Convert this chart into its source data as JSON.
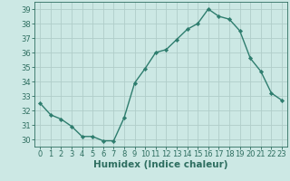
{
  "x": [
    0,
    1,
    2,
    3,
    4,
    5,
    6,
    7,
    8,
    9,
    10,
    11,
    12,
    13,
    14,
    15,
    16,
    17,
    18,
    19,
    20,
    21,
    22,
    23
  ],
  "y": [
    32.5,
    31.7,
    31.4,
    30.9,
    30.2,
    30.2,
    29.9,
    29.9,
    31.5,
    33.9,
    34.9,
    36.0,
    36.2,
    36.9,
    37.6,
    38.0,
    39.0,
    38.5,
    38.3,
    37.5,
    35.6,
    34.7,
    33.2,
    32.7
  ],
  "line_color": "#2e7d6e",
  "marker": "D",
  "marker_size": 2.2,
  "line_width": 1.0,
  "bg_color": "#cce8e4",
  "plot_bg_color": "#cce8e4",
  "grid_color": "#b0cdc9",
  "xlabel": "Humidex (Indice chaleur)",
  "ylabel": "",
  "ylim": [
    29.5,
    39.5
  ],
  "yticks": [
    30,
    31,
    32,
    33,
    34,
    35,
    36,
    37,
    38,
    39
  ],
  "xlim": [
    -0.5,
    23.5
  ],
  "xticks": [
    0,
    1,
    2,
    3,
    4,
    5,
    6,
    7,
    8,
    9,
    10,
    11,
    12,
    13,
    14,
    15,
    16,
    17,
    18,
    19,
    20,
    21,
    22,
    23
  ],
  "tick_label_fontsize": 6.0,
  "xlabel_fontsize": 7.5,
  "tick_color": "#2e6e60",
  "label_color": "#2e6e60",
  "spine_color": "#2e6e60"
}
